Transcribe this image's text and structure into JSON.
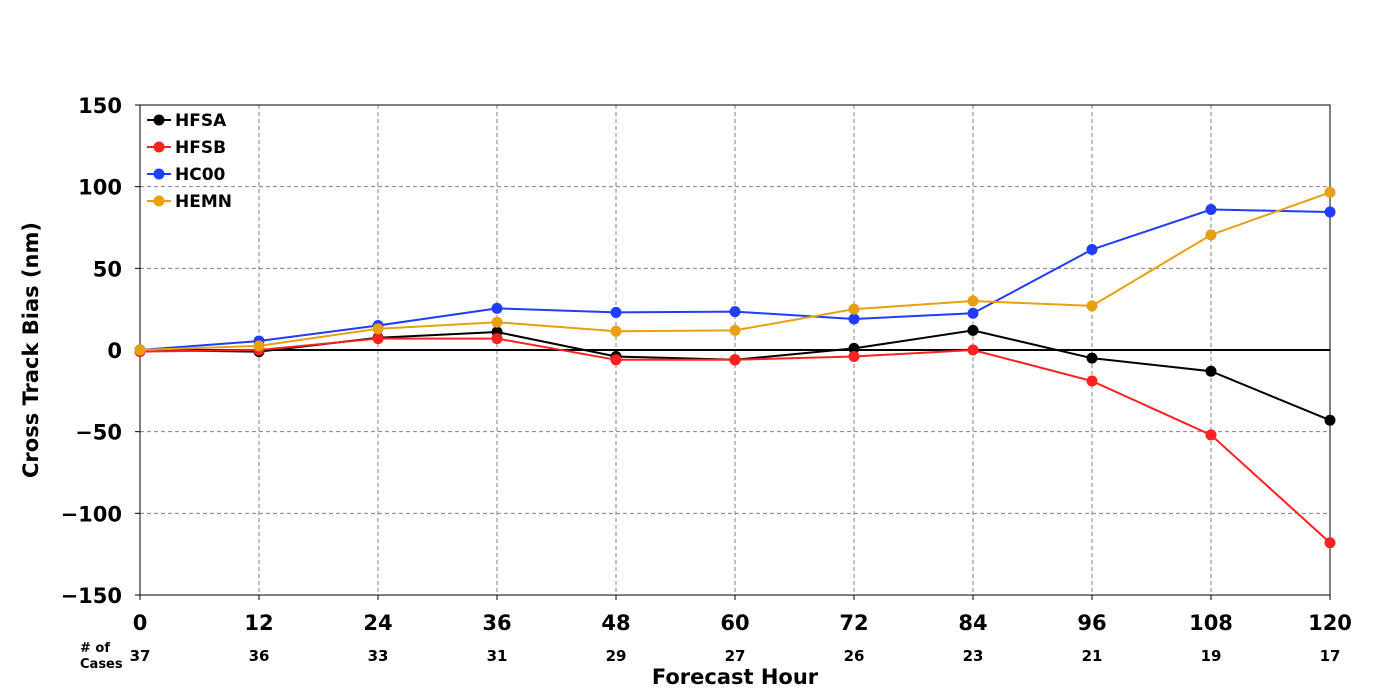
{
  "chart_data": {
    "type": "line",
    "title": "",
    "xlabel": "Forecast Hour",
    "ylabel": "Cross Track Bias (nm)",
    "x": [
      0,
      12,
      24,
      36,
      48,
      60,
      72,
      84,
      96,
      108,
      120
    ],
    "xlim": [
      0,
      120
    ],
    "ylim": [
      -150,
      150
    ],
    "yticks": [
      -150,
      -100,
      -50,
      0,
      50,
      100,
      150
    ],
    "grid": true,
    "legend_position": "top-left",
    "cases_header": [
      "# of",
      "Cases"
    ],
    "cases": [
      37,
      36,
      33,
      31,
      29,
      27,
      26,
      23,
      21,
      19,
      17
    ],
    "series": [
      {
        "name": "HFSA",
        "color": "#000000",
        "values": [
          0,
          -1,
          7.5,
          11,
          -4,
          -6,
          1,
          12,
          -5,
          -13,
          -43
        ]
      },
      {
        "name": "HFSB",
        "color": "#ff2020",
        "values": [
          -1,
          0,
          7,
          7,
          -6,
          -6,
          -4,
          0,
          -19,
          -52,
          -118
        ]
      },
      {
        "name": "HC00",
        "color": "#1f3cff",
        "values": [
          0,
          5.5,
          15,
          25.5,
          23,
          23.5,
          19,
          22.5,
          61.5,
          86,
          84.5
        ]
      },
      {
        "name": "HEMN",
        "color": "#e8a010",
        "values": [
          0,
          2.5,
          13,
          17,
          11.5,
          12,
          25,
          30,
          27,
          70.5,
          96.5
        ]
      }
    ]
  }
}
